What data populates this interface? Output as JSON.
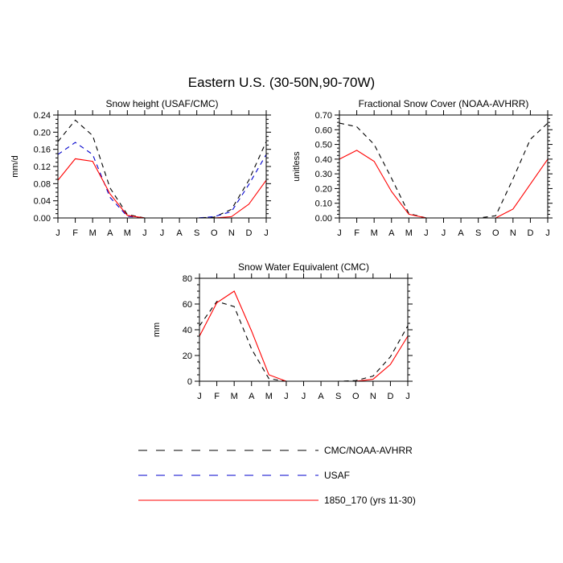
{
  "figure_title": "Eastern U.S. (30-50N,90-70W)",
  "legend": [
    {
      "label": "CMC/NOAA-AVHRR",
      "color": "#000000",
      "dash": "dashed"
    },
    {
      "label": "USAF",
      "color": "#0000cc",
      "dash": "dashed"
    },
    {
      "label": "1850_170 (yrs 11-30)",
      "color": "#ff0000",
      "dash": "solid"
    }
  ],
  "chart_data": [
    {
      "type": "line",
      "title": "Snow height (USAF/CMC)",
      "xlabel": "",
      "ylabel": "mm/d",
      "categories": [
        "J",
        "F",
        "M",
        "A",
        "M",
        "J",
        "J",
        "A",
        "S",
        "O",
        "N",
        "D",
        "J"
      ],
      "ylim": [
        0,
        0.24
      ],
      "yticks": [
        0.0,
        0.04,
        0.08,
        0.12,
        0.16,
        0.2,
        0.24
      ],
      "ytick_labels": [
        "0.00",
        "0.04",
        "0.08",
        "0.12",
        "0.16",
        "0.20",
        "0.24"
      ],
      "series": [
        {
          "name": "CMC/NOAA-AVHRR",
          "color": "#000000",
          "dash": "dashed",
          "values": [
            0.178,
            0.228,
            0.192,
            0.07,
            0.008,
            0.0,
            0.0,
            0.0,
            0.0,
            0.002,
            0.02,
            0.088,
            0.178
          ]
        },
        {
          "name": "USAF",
          "color": "#0000cc",
          "dash": "dashed",
          "values": [
            0.148,
            0.176,
            0.148,
            0.048,
            0.004,
            0.0,
            0.0,
            0.0,
            0.0,
            0.003,
            0.015,
            0.078,
            0.148
          ]
        },
        {
          "name": "1850_170 (yrs 11-30)",
          "color": "#ff0000",
          "dash": "solid",
          "values": [
            0.088,
            0.138,
            0.132,
            0.056,
            0.006,
            0.0,
            0.0,
            0.0,
            0.0,
            0.0,
            0.003,
            0.032,
            0.088
          ]
        }
      ]
    },
    {
      "type": "line",
      "title": "Fractional Snow Cover (NOAA-AVHRR)",
      "xlabel": "",
      "ylabel": "unitless",
      "categories": [
        "J",
        "F",
        "M",
        "A",
        "M",
        "J",
        "J",
        "A",
        "S",
        "O",
        "N",
        "D",
        "J"
      ],
      "ylim": [
        0,
        0.7
      ],
      "yticks": [
        0.0,
        0.1,
        0.2,
        0.3,
        0.4,
        0.5,
        0.6,
        0.7
      ],
      "ytick_labels": [
        "0.00",
        "0.10",
        "0.20",
        "0.30",
        "0.40",
        "0.50",
        "0.60",
        "0.70"
      ],
      "series": [
        {
          "name": "CMC/NOAA-AVHRR",
          "color": "#000000",
          "dash": "dashed",
          "values": [
            0.645,
            0.62,
            0.5,
            0.27,
            0.03,
            0.0,
            0.0,
            0.0,
            0.0,
            0.015,
            0.265,
            0.535,
            0.645
          ]
        },
        {
          "name": "1850_170 (yrs 11-30)",
          "color": "#ff0000",
          "dash": "solid",
          "values": [
            0.4,
            0.46,
            0.385,
            0.18,
            0.025,
            0.0,
            0.0,
            0.0,
            0.0,
            0.0,
            0.06,
            0.23,
            0.4
          ]
        }
      ]
    },
    {
      "type": "line",
      "title": "Snow Water Equivalent (CMC)",
      "xlabel": "",
      "ylabel": "mm",
      "categories": [
        "J",
        "F",
        "M",
        "A",
        "M",
        "J",
        "J",
        "A",
        "S",
        "O",
        "N",
        "D",
        "J"
      ],
      "ylim": [
        0,
        80
      ],
      "yticks": [
        0,
        20,
        40,
        60,
        80
      ],
      "ytick_labels": [
        "0",
        "20",
        "40",
        "60",
        "80"
      ],
      "series": [
        {
          "name": "CMC/NOAA-AVHRR",
          "color": "#000000",
          "dash": "dashed",
          "values": [
            43,
            62,
            58,
            25,
            2,
            0,
            0,
            0,
            0,
            0.5,
            4,
            19,
            43
          ]
        },
        {
          "name": "1850_170 (yrs 11-30)",
          "color": "#ff0000",
          "dash": "solid",
          "values": [
            35,
            61,
            70,
            39,
            5,
            0,
            0,
            0,
            0,
            0,
            1.5,
            13,
            35
          ]
        }
      ]
    }
  ]
}
